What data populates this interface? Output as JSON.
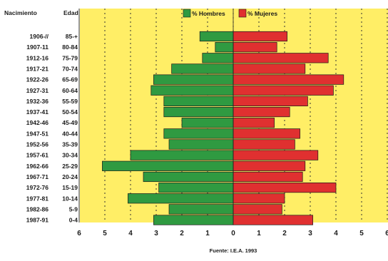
{
  "header": {
    "col_birth": "Nacimiento",
    "col_age": "Edad"
  },
  "source": "Fuente: I.E.A. 1993",
  "chart_data": {
    "type": "bar",
    "orientation": "horizontal",
    "subtype": "population-pyramid",
    "title": "",
    "xlabel": "",
    "ylabel": "",
    "xlim": [
      -6,
      6
    ],
    "x_ticks": [
      6,
      5,
      4,
      3,
      2,
      1,
      0,
      1,
      2,
      3,
      4,
      5,
      6
    ],
    "grid": true,
    "legend_position": "top",
    "colors": {
      "background": "#ffee66",
      "hombres": "#2f9a41",
      "mujeres": "#e03030"
    },
    "categories": [
      "1906-//",
      "1907-11",
      "1912-16",
      "1917-21",
      "1922-26",
      "1927-31",
      "1932-36",
      "1937-41",
      "1942-46",
      "1947-51",
      "1952-56",
      "1957-61",
      "1962-66",
      "1967-71",
      "1972-76",
      "1977-81",
      "1982-86",
      "1987-91"
    ],
    "age_groups": [
      "85-+",
      "80-84",
      "75-79",
      "70-74",
      "65-69",
      "60-64",
      "55-59",
      "50-54",
      "45-49",
      "40-44",
      "35-39",
      "30-34",
      "25-29",
      "20-24",
      "15-19",
      "10-14",
      "5-9",
      "0-4"
    ],
    "series": [
      {
        "name": "% Hombres",
        "values": [
          1.3,
          0.7,
          1.2,
          2.4,
          3.1,
          3.2,
          2.7,
          2.7,
          2.0,
          2.7,
          2.5,
          4.0,
          5.1,
          3.5,
          2.9,
          4.1,
          2.5,
          3.1
        ]
      },
      {
        "name": "% Mujeres",
        "values": [
          2.1,
          1.7,
          3.7,
          2.8,
          4.3,
          3.9,
          2.9,
          2.2,
          1.6,
          2.6,
          2.4,
          3.3,
          2.8,
          2.7,
          4.0,
          2.0,
          1.9,
          3.1
        ]
      }
    ]
  }
}
